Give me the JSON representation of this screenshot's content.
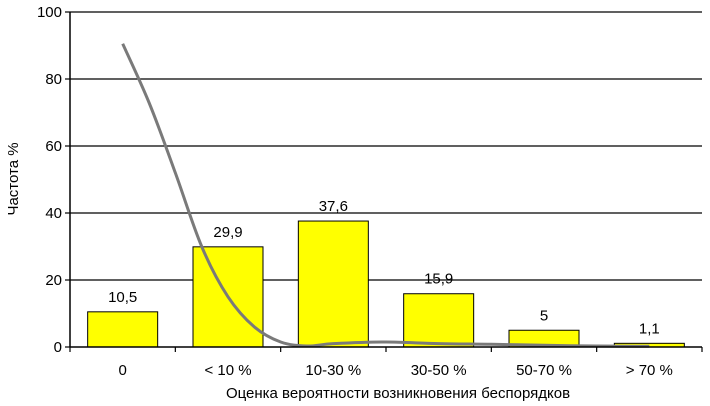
{
  "chart_data": {
    "type": "bar",
    "xlabel": "Оценка вероятности возникновения беспорядков",
    "ylabel": "Частота %",
    "categories": [
      "0",
      "< 10 %",
      "10-30 %",
      "30-50 %",
      "50-70 %",
      "> 70 %"
    ],
    "values": [
      10.5,
      29.9,
      37.6,
      15.9,
      5,
      1.1
    ],
    "value_labels": [
      "10,5",
      "29,9",
      "37,6",
      "15,9",
      "5",
      "1,1"
    ],
    "ylim": [
      0,
      100
    ],
    "yticks": [
      "0",
      "20",
      "40",
      "60",
      "80",
      "100"
    ],
    "grid": true,
    "curve": {
      "type": "line",
      "x": [
        0,
        0.25,
        0.5,
        0.75,
        1.0,
        1.25,
        1.5,
        1.75,
        2.0,
        2.5,
        3.0,
        3.5,
        4.0,
        4.5,
        5.0
      ],
      "y": [
        90.5,
        73,
        52,
        30,
        15,
        6,
        1.5,
        0.3,
        1,
        1.5,
        1,
        0.8,
        0.5,
        0.3,
        0.2
      ]
    },
    "colors": {
      "bar_fill": "#ffff00",
      "bar_stroke": "#000000",
      "curve": "#7a7a7a"
    }
  }
}
